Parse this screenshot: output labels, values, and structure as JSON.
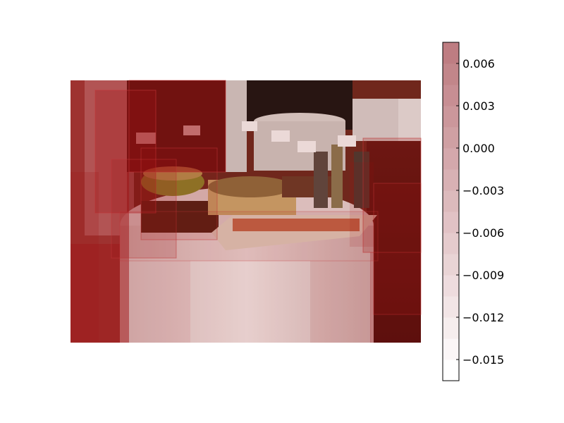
{
  "chart_data": {
    "type": "heatmap",
    "title": "",
    "xlabel": "",
    "ylabel": "",
    "image_description_visible": "photo of a round table with food platters, overlaid with translucent red rectangles",
    "colorbar": {
      "colormap": "Reds",
      "min": -0.0165,
      "max": 0.0075,
      "levels": [
        -0.0165,
        -0.015,
        -0.0135,
        -0.012,
        -0.0105,
        -0.009,
        -0.0075,
        -0.006,
        -0.0045,
        -0.003,
        -0.0015,
        0.0,
        0.0015,
        0.003,
        0.0045,
        0.006,
        0.0075
      ],
      "tick_values": [
        0.006,
        0.003,
        0.0,
        -0.003,
        -0.006,
        -0.009,
        -0.012,
        -0.015
      ],
      "tick_labels": [
        "0.006",
        "0.003",
        "0.000",
        "−0.003",
        "−0.006",
        "−0.009",
        "−0.012",
        "−0.015"
      ]
    },
    "overlay_regions_relevance": [
      0.0075,
      0.0045,
      0.003,
      0.0015,
      0.0,
      -0.0015,
      -0.003,
      -0.0045,
      -0.006
    ]
  },
  "colors": {
    "background": "#ffffff",
    "table_cloth": "#e8d8d6",
    "wall_dark": "#3a1410",
    "overlay_red": "#a11214",
    "colorbar_border": "#000000"
  }
}
